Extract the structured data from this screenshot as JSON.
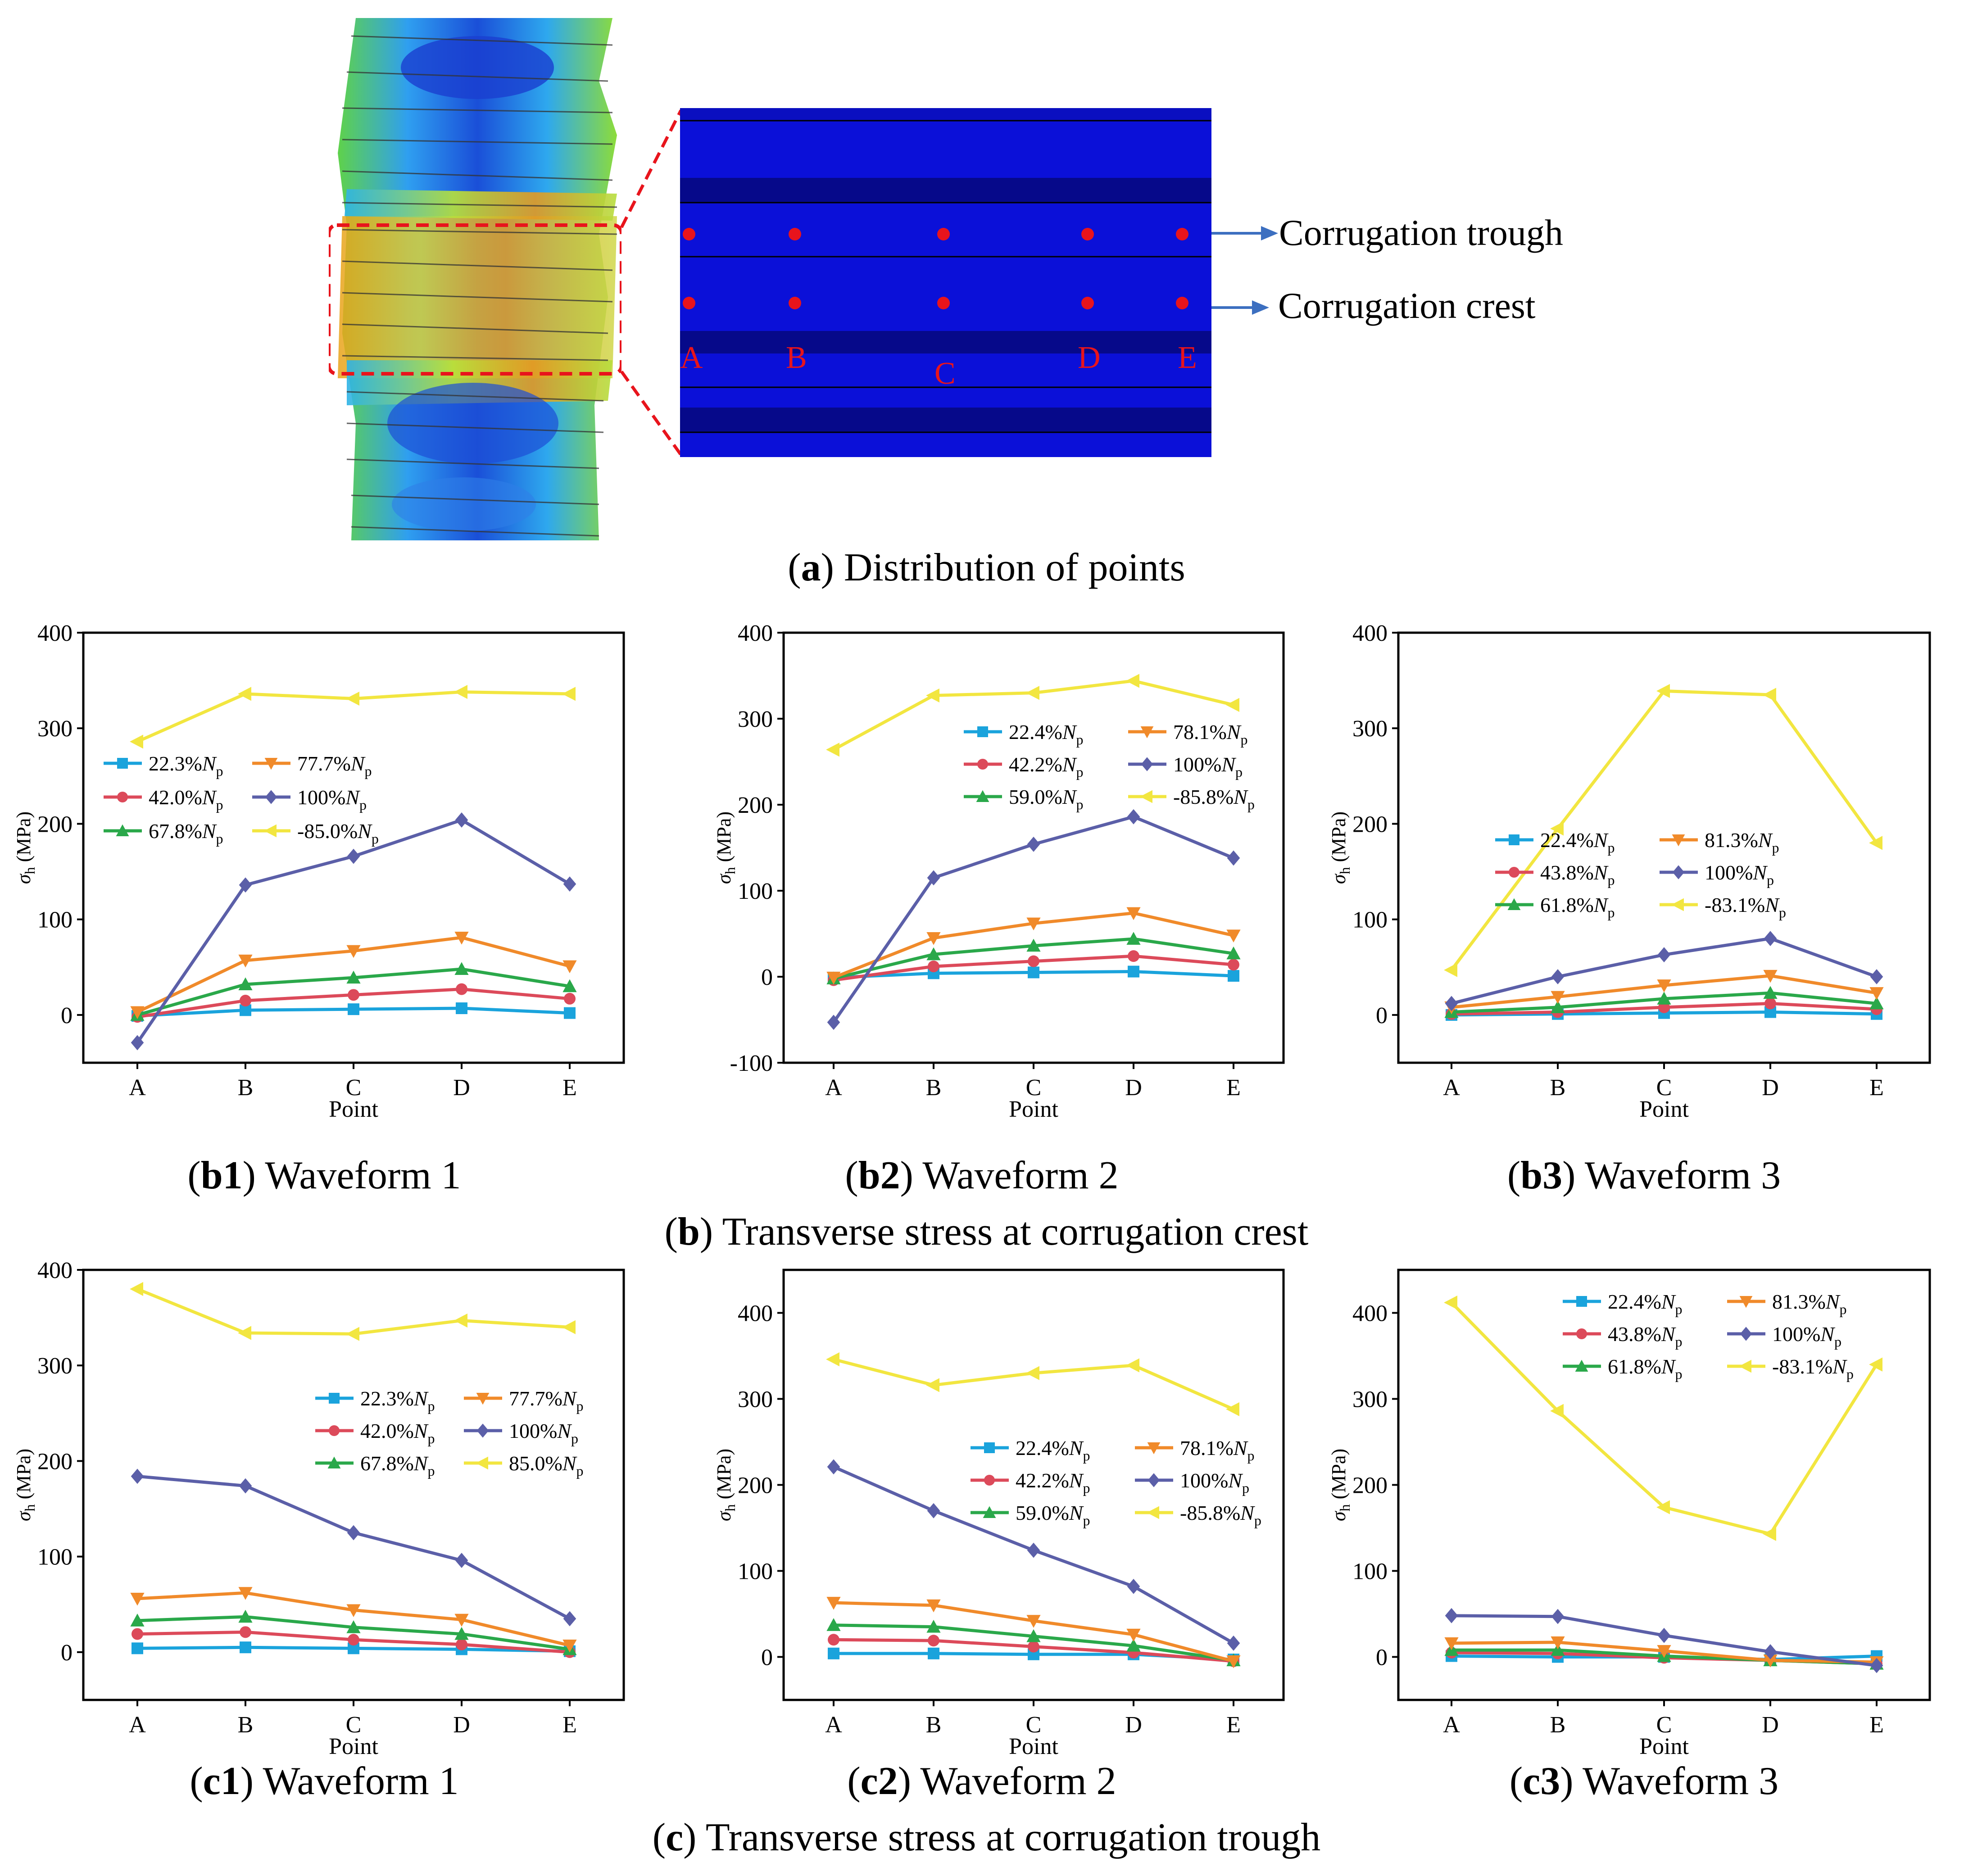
{
  "figure": {
    "zoom_points": [
      "A",
      "B",
      "C",
      "D",
      "E"
    ],
    "trough_label": "Corrugation trough",
    "crest_label": "Corrugation crest",
    "caption_a": {
      "tag": "a",
      "text": ") Distribution of points"
    },
    "caption_b": {
      "tag": "b",
      "text": ") Transverse stress at corrugation crest"
    },
    "caption_c": {
      "tag": "c",
      "text": ") Transverse stress at corrugation trough"
    },
    "captions": [
      {
        "tag": "b1",
        "text": ") Waveform 1"
      },
      {
        "tag": "b2",
        "text": ") Waveform 2"
      },
      {
        "tag": "b3",
        "text": ") Waveform 3"
      },
      {
        "tag": "c1",
        "text": ") Waveform 1"
      },
      {
        "tag": "c2",
        "text": ") Waveform 2"
      },
      {
        "tag": "c3",
        "text": ") Waveform 3"
      }
    ]
  },
  "colors": {
    "series": [
      "#1aa3dc",
      "#dc4a5a",
      "#2aa84a",
      "#f08a2a",
      "#5b5fa8",
      "#f2e640"
    ],
    "zoom_blue": "#0b10d8",
    "zoom_band": "#06098a",
    "points_red": "#e8141c",
    "arrow_blue": "#3c6fc0"
  },
  "chart_data": [
    {
      "id": "b1",
      "type": "line",
      "title": "Waveform 1",
      "xlabel": "Point",
      "ylabel": "σh (MPa)",
      "categories": [
        "A",
        "B",
        "C",
        "D",
        "E"
      ],
      "ylim": [
        -50,
        400
      ],
      "yticks": [
        0,
        100,
        200,
        300,
        400
      ],
      "legend": "middle-left",
      "series": [
        {
          "pct": "22.3%",
          "values": [
            -1,
            5,
            6,
            7,
            2
          ],
          "marker": "square"
        },
        {
          "pct": "42.0%",
          "values": [
            -2,
            15,
            21,
            27,
            17
          ],
          "marker": "circle"
        },
        {
          "pct": "67.8%",
          "values": [
            0,
            32,
            39,
            48,
            30
          ],
          "marker": "triangle"
        },
        {
          "pct": "77.7%",
          "values": [
            3,
            57,
            67,
            81,
            51
          ],
          "marker": "tri-down"
        },
        {
          "pct": "100%",
          "values": [
            -29,
            136,
            166,
            204,
            137
          ],
          "marker": "diamond"
        },
        {
          "pct": "-85.0%",
          "values": [
            286,
            336,
            331,
            338,
            336
          ],
          "marker": "tri-left"
        }
      ]
    },
    {
      "id": "b2",
      "type": "line",
      "title": "Waveform 2",
      "xlabel": "Point",
      "ylabel": "σh (MPa)",
      "categories": [
        "A",
        "B",
        "C",
        "D",
        "E"
      ],
      "ylim": [
        -100,
        400
      ],
      "yticks": [
        -100,
        0,
        100,
        200,
        300,
        400
      ],
      "legend": "upper-right",
      "series": [
        {
          "pct": "22.4%",
          "values": [
            -1,
            4,
            5,
            6,
            1
          ],
          "marker": "square"
        },
        {
          "pct": "42.2%",
          "values": [
            -4,
            12,
            18,
            24,
            14
          ],
          "marker": "circle"
        },
        {
          "pct": "59.0%",
          "values": [
            -2,
            26,
            36,
            44,
            27
          ],
          "marker": "triangle"
        },
        {
          "pct": "78.1%",
          "values": [
            -1,
            45,
            62,
            74,
            48
          ],
          "marker": "tri-down"
        },
        {
          "pct": "100%",
          "values": [
            -53,
            115,
            154,
            186,
            138
          ],
          "marker": "diamond"
        },
        {
          "pct": "-85.8%",
          "values": [
            264,
            327,
            330,
            344,
            316
          ],
          "marker": "tri-left"
        }
      ]
    },
    {
      "id": "b3",
      "type": "line",
      "title": "Waveform 3",
      "xlabel": "Point",
      "ylabel": "σh (MPa)",
      "categories": [
        "A",
        "B",
        "C",
        "D",
        "E"
      ],
      "ylim": [
        -50,
        400
      ],
      "yticks": [
        0,
        100,
        200,
        300,
        400
      ],
      "legend": "middle-right",
      "series": [
        {
          "pct": "22.4%",
          "values": [
            0,
            1,
            2,
            3,
            1
          ],
          "marker": "square"
        },
        {
          "pct": "43.8%",
          "values": [
            1,
            3,
            8,
            12,
            6
          ],
          "marker": "circle"
        },
        {
          "pct": "61.8%",
          "values": [
            3,
            8,
            17,
            23,
            12
          ],
          "marker": "triangle"
        },
        {
          "pct": "81.3%",
          "values": [
            8,
            19,
            31,
            41,
            23
          ],
          "marker": "tri-down"
        },
        {
          "pct": "100%",
          "values": [
            12,
            40,
            63,
            80,
            40
          ],
          "marker": "diamond"
        },
        {
          "pct": "-83.1%",
          "values": [
            47,
            195,
            339,
            335,
            180
          ],
          "marker": "tri-left"
        }
      ]
    },
    {
      "id": "c1",
      "type": "line",
      "title": "Waveform 1",
      "xlabel": "Point",
      "ylabel": "σh (MPa)",
      "categories": [
        "A",
        "B",
        "C",
        "D",
        "E"
      ],
      "ylim": [
        -50,
        400
      ],
      "yticks": [
        0,
        100,
        200,
        300,
        400
      ],
      "legend": "middle-right",
      "series": [
        {
          "pct": "22.3%",
          "values": [
            4,
            5,
            4,
            3,
            1
          ],
          "marker": "square"
        },
        {
          "pct": "42.0%",
          "values": [
            19,
            21,
            13,
            8,
            0
          ],
          "marker": "circle"
        },
        {
          "pct": "67.8%",
          "values": [
            33,
            37,
            26,
            19,
            3
          ],
          "marker": "triangle"
        },
        {
          "pct": "77.7%",
          "values": [
            56,
            62,
            44,
            34,
            7
          ],
          "marker": "tri-down"
        },
        {
          "pct": "100%",
          "values": [
            184,
            174,
            125,
            96,
            35
          ],
          "marker": "diamond"
        },
        {
          "pct": "85.0%",
          "values": [
            380,
            334,
            333,
            347,
            340
          ],
          "marker": "tri-left"
        }
      ]
    },
    {
      "id": "c2",
      "type": "line",
      "title": "Waveform 2",
      "xlabel": "Point",
      "ylabel": "σh (MPa)",
      "categories": [
        "A",
        "B",
        "C",
        "D",
        "E"
      ],
      "ylim": [
        -50,
        450
      ],
      "yticks": [
        0,
        100,
        200,
        300,
        400
      ],
      "legend": "middle-right",
      "series": [
        {
          "pct": "22.4%",
          "values": [
            4,
            4,
            3,
            3,
            -3
          ],
          "marker": "square"
        },
        {
          "pct": "42.2%",
          "values": [
            20,
            19,
            12,
            5,
            -5
          ],
          "marker": "circle"
        },
        {
          "pct": "59.0%",
          "values": [
            37,
            35,
            24,
            13,
            -4
          ],
          "marker": "triangle"
        },
        {
          "pct": "78.1%",
          "values": [
            63,
            60,
            42,
            26,
            -5
          ],
          "marker": "tri-down"
        },
        {
          "pct": "100%",
          "values": [
            221,
            170,
            124,
            82,
            16
          ],
          "marker": "diamond"
        },
        {
          "pct": "-85.8%",
          "values": [
            346,
            316,
            330,
            339,
            288
          ],
          "marker": "tri-left"
        }
      ]
    },
    {
      "id": "c3",
      "type": "line",
      "title": "Waveform 3",
      "xlabel": "Point",
      "ylabel": "σh (MPa)",
      "categories": [
        "A",
        "B",
        "C",
        "D",
        "E"
      ],
      "ylim": [
        -50,
        450
      ],
      "yticks": [
        0,
        100,
        200,
        300,
        400
      ],
      "legend": "upper-right",
      "series": [
        {
          "pct": "22.4%",
          "values": [
            1,
            0,
            0,
            -3,
            1
          ],
          "marker": "square"
        },
        {
          "pct": "43.8%",
          "values": [
            5,
            4,
            -1,
            -4,
            -8
          ],
          "marker": "circle"
        },
        {
          "pct": "61.8%",
          "values": [
            8,
            8,
            1,
            -4,
            -8
          ],
          "marker": "triangle"
        },
        {
          "pct": "81.3%",
          "values": [
            16,
            17,
            7,
            -4,
            -6
          ],
          "marker": "tri-down"
        },
        {
          "pct": "100%",
          "values": [
            48,
            47,
            25,
            6,
            -10
          ],
          "marker": "diamond"
        },
        {
          "pct": "-83.1%",
          "values": [
            412,
            286,
            174,
            143,
            340
          ],
          "marker": "tri-left"
        }
      ]
    }
  ]
}
